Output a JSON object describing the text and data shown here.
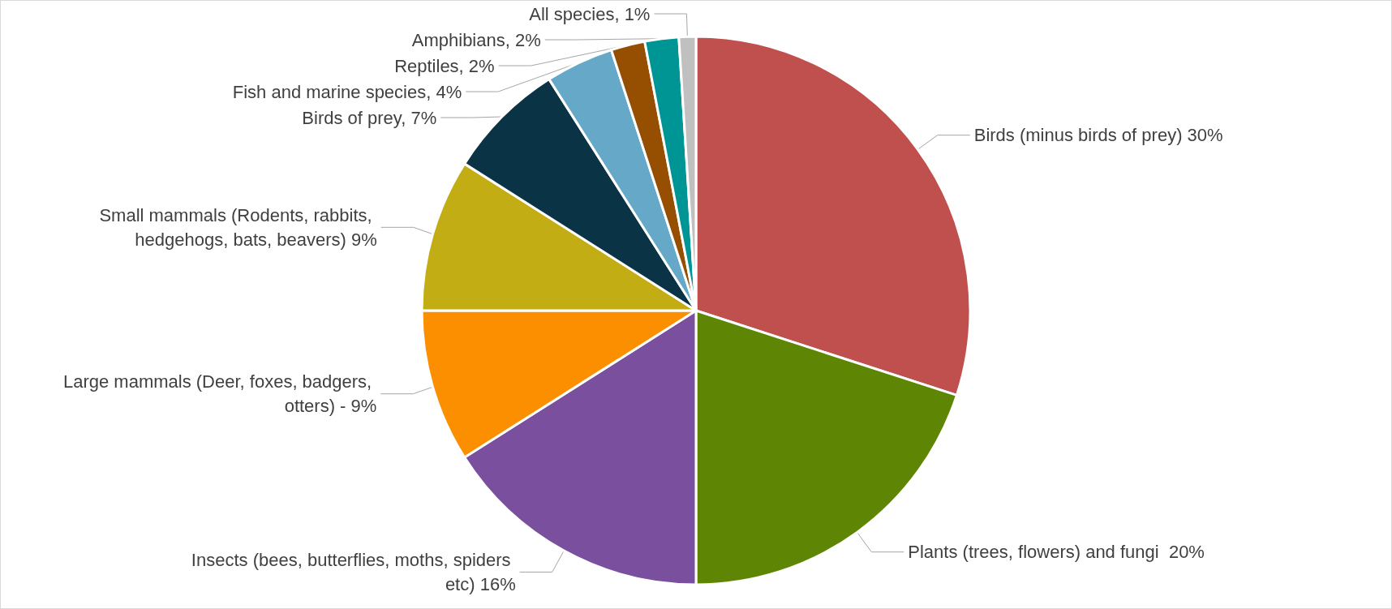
{
  "chart_data": {
    "type": "pie",
    "categories": [
      "Birds (minus birds of prey)",
      "Plants (trees, flowers) and fungi ",
      "Insects (bees, butterflies, moths, spiders etc)",
      "Large mammals (Deer, foxes, badgers, otters) -",
      "Small mammals (Rodents, rabbits, hedgehogs, bats, beavers)",
      "Birds of prey",
      "Fish and marine species",
      "Reptiles",
      "Amphibians",
      "All species"
    ],
    "values": [
      30,
      20,
      16,
      9,
      9,
      7,
      4,
      2,
      2,
      1
    ],
    "value_labels": [
      "30%",
      "20%",
      "16%",
      "9%",
      "9%",
      "7%",
      "4%",
      "2%",
      "2%",
      "1%"
    ],
    "colors": [
      "#c0504d",
      "#5e8503",
      "#7a4f9e",
      "#fb8f00",
      "#c2ae14",
      "#0a3446",
      "#65a8c8",
      "#964f00",
      "#009595",
      "#c0c0c0"
    ],
    "legend": false
  }
}
